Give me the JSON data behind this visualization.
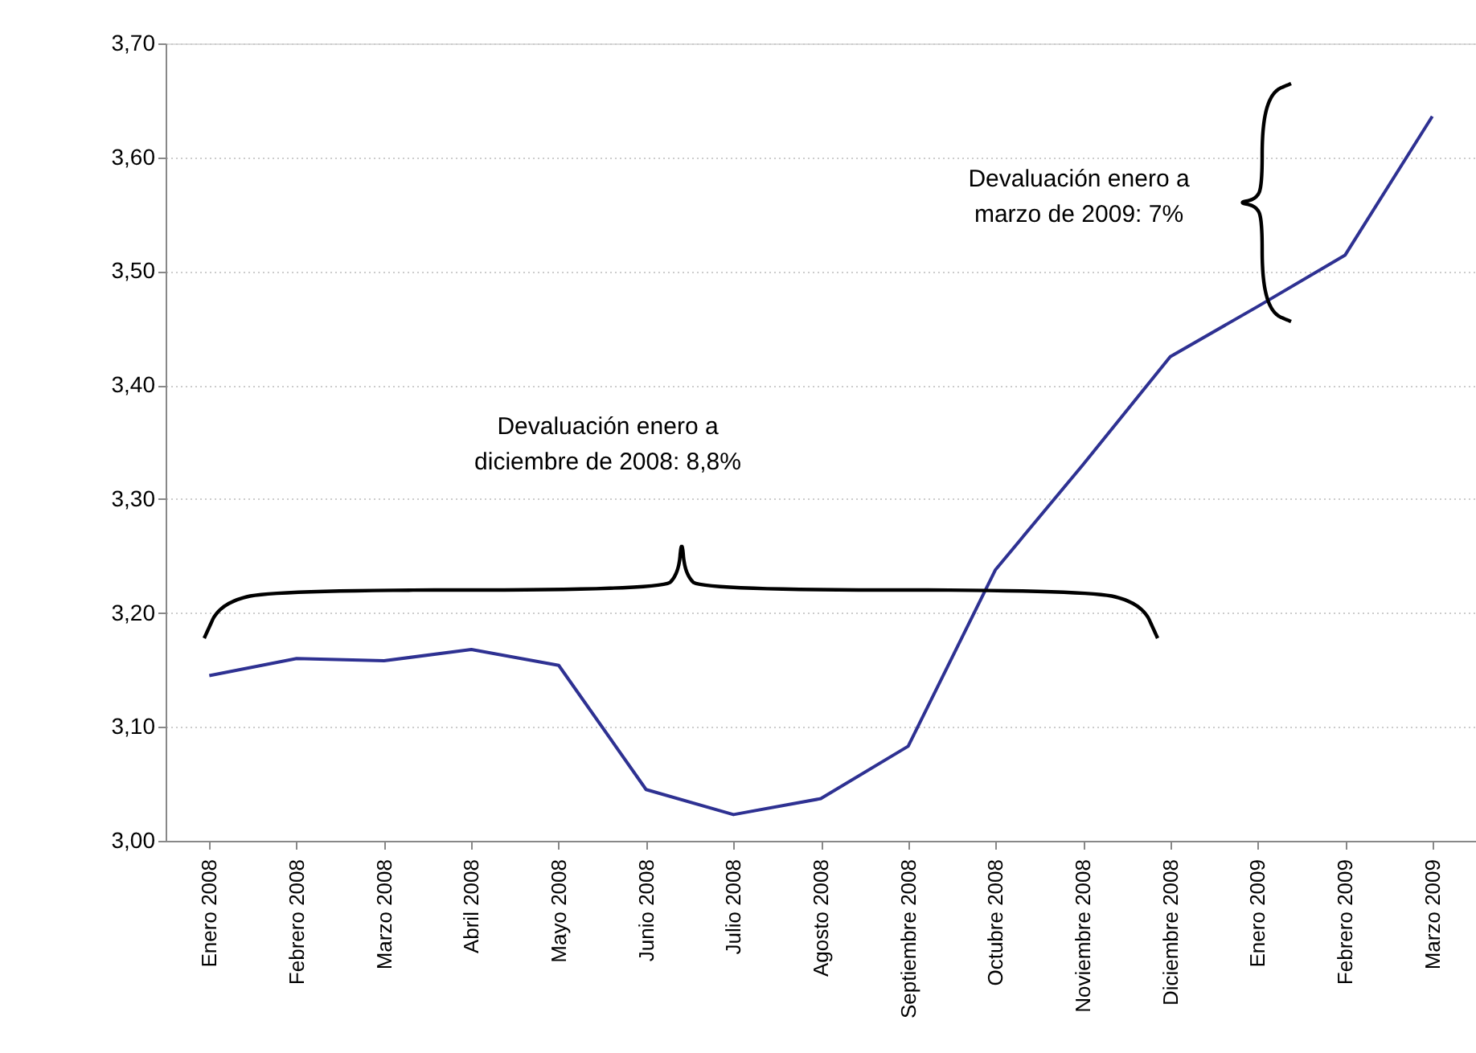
{
  "chart_data": {
    "type": "line",
    "categories": [
      "Enero 2008",
      "Febrero 2008",
      "Marzo 2008",
      "Abril 2008",
      "Mayo 2008",
      "Junio 2008",
      "Julio 2008",
      "Agosto 2008",
      "Septiembre 2008",
      "Octubre 2008",
      "Noviembre 2008",
      "Diciembre 2008",
      "Enero 2009",
      "Febrero 2009",
      "Marzo 2009"
    ],
    "series": [
      {
        "color": "#2e3192",
        "values": [
          3.145,
          3.16,
          3.158,
          3.168,
          3.154,
          3.045,
          3.023,
          3.037,
          3.083,
          3.238,
          3.33,
          3.425,
          3.469,
          3.514,
          3.636
        ]
      }
    ],
    "ylim": [
      3.0,
      3.7
    ],
    "yticks": [
      {
        "value": 3.0,
        "label": "3,00"
      },
      {
        "value": 3.1,
        "label": "3,10"
      },
      {
        "value": 3.2,
        "label": "3,20"
      },
      {
        "value": 3.3,
        "label": "3,30"
      },
      {
        "value": 3.4,
        "label": "3,40"
      },
      {
        "value": 3.5,
        "label": "3,50"
      },
      {
        "value": 3.6,
        "label": "3,60"
      },
      {
        "value": 3.7,
        "label": "3,70"
      }
    ],
    "grid": "y",
    "annotations": [
      "Devaluación enero a\ndiciembre de 2008: 8,8%",
      "Devaluación enero a\nmarzo de 2009: 7%"
    ]
  }
}
